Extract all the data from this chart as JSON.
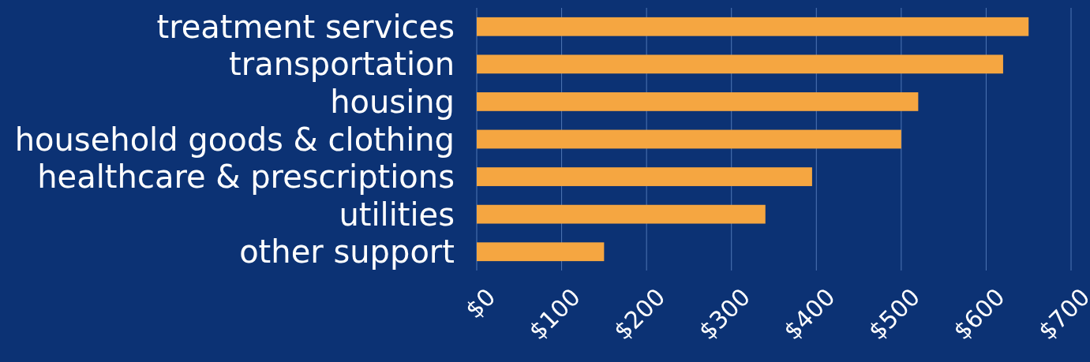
{
  "chart_data": {
    "type": "bar",
    "orientation": "horizontal",
    "categories": [
      "treatment services",
      "transportation",
      "housing",
      "household goods & clothing",
      "healthcare & prescriptions",
      "utilities",
      "other support"
    ],
    "values": [
      650,
      620,
      520,
      500,
      395,
      340,
      150
    ],
    "color": "#f5a641",
    "xlim": [
      0,
      700
    ],
    "xticks": [
      {
        "value": 0,
        "label": "$0"
      },
      {
        "value": 100,
        "label": "$100"
      },
      {
        "value": 200,
        "label": "$200"
      },
      {
        "value": 300,
        "label": "$300"
      },
      {
        "value": 400,
        "label": "$400"
      },
      {
        "value": 500,
        "label": "$500"
      },
      {
        "value": 600,
        "label": "$600"
      },
      {
        "value": 700,
        "label": "$700"
      }
    ],
    "grid": "x"
  }
}
